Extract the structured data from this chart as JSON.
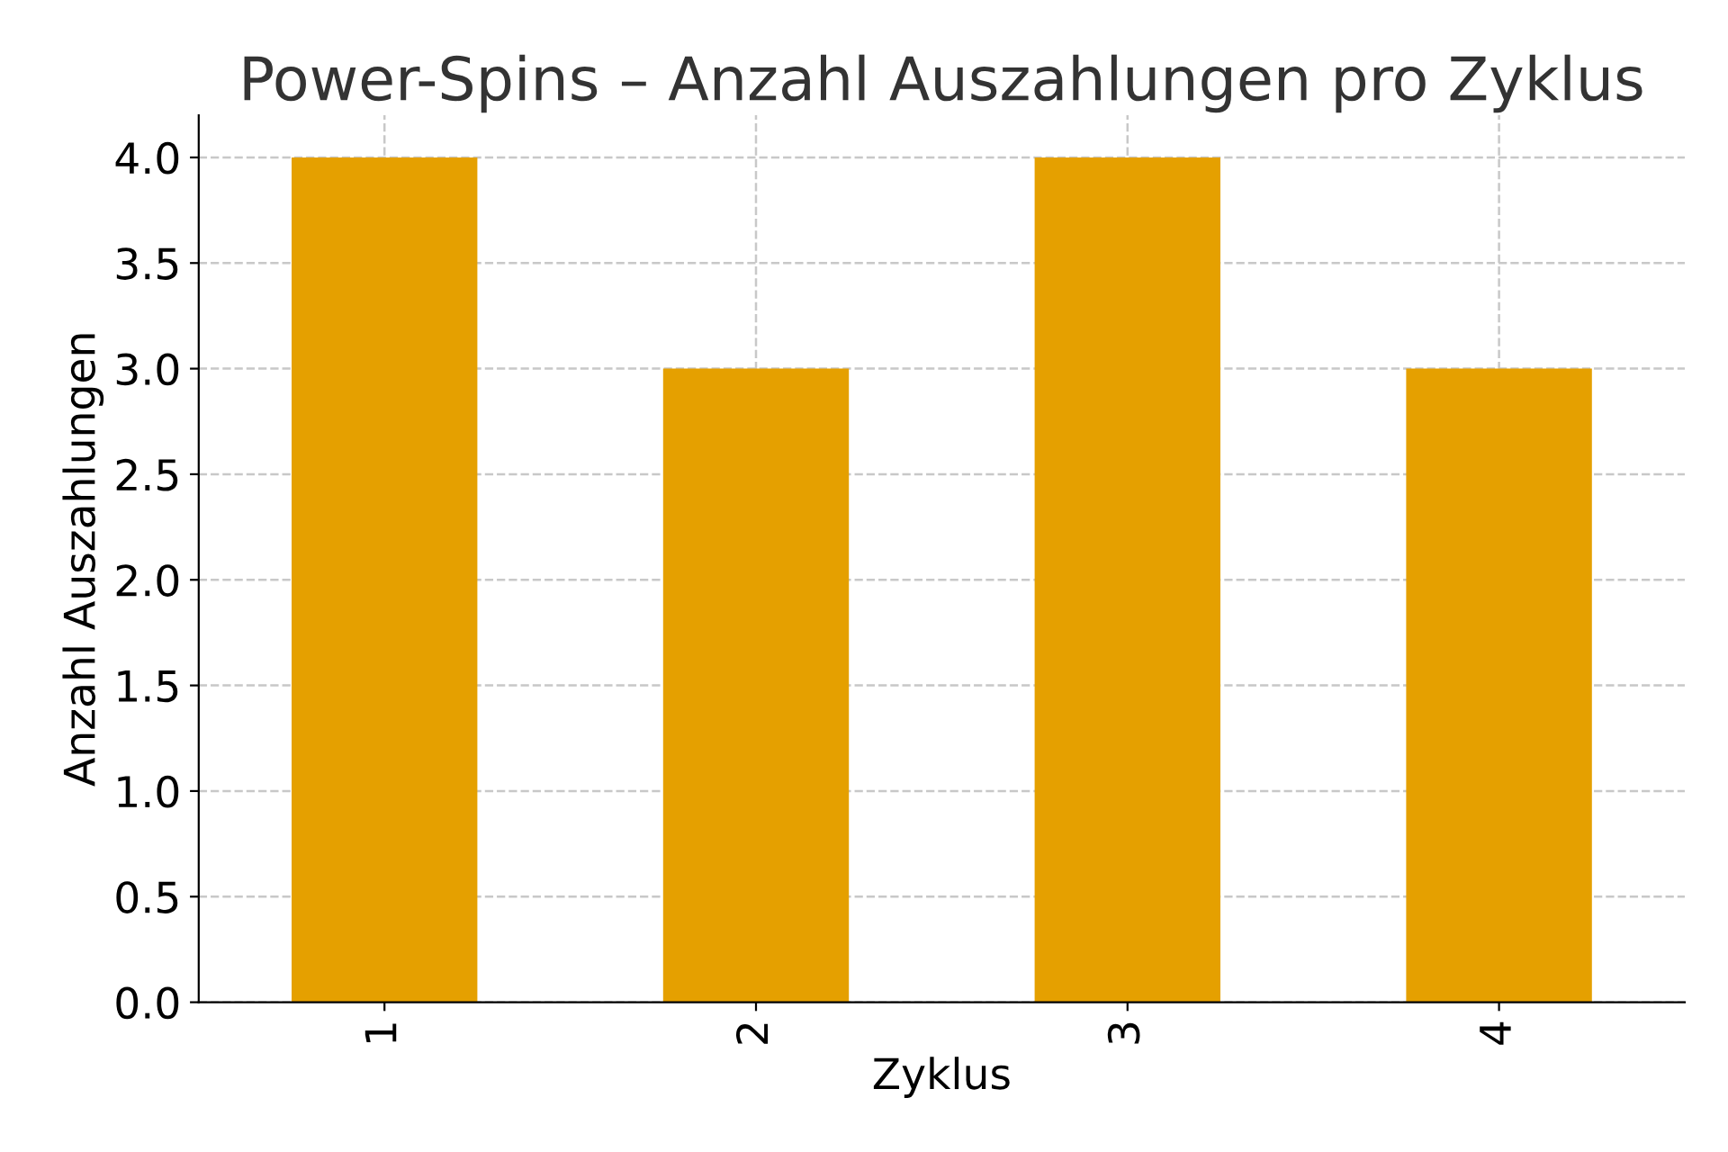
{
  "chart_data": {
    "type": "bar",
    "title": "Power-Spins – Anzahl Auszahlungen pro Zyklus",
    "xlabel": "Zyklus",
    "ylabel": "Anzahl Auszahlungen",
    "categories": [
      "1",
      "2",
      "3",
      "4"
    ],
    "values": [
      4,
      3,
      4,
      3
    ],
    "color": "#e5a000",
    "ylim": [
      0,
      4.2
    ],
    "yticks": [
      {
        "value": 0,
        "label": "0.0"
      },
      0.5,
      {
        "value": 1,
        "label": "1.0"
      },
      1.5,
      {
        "value": 2,
        "label": "2.0"
      },
      2.5,
      {
        "value": 3,
        "label": "3.0"
      },
      3.5,
      {
        "value": 4,
        "label": "4.0"
      }
    ],
    "grid": true,
    "line_style": "dashed"
  }
}
